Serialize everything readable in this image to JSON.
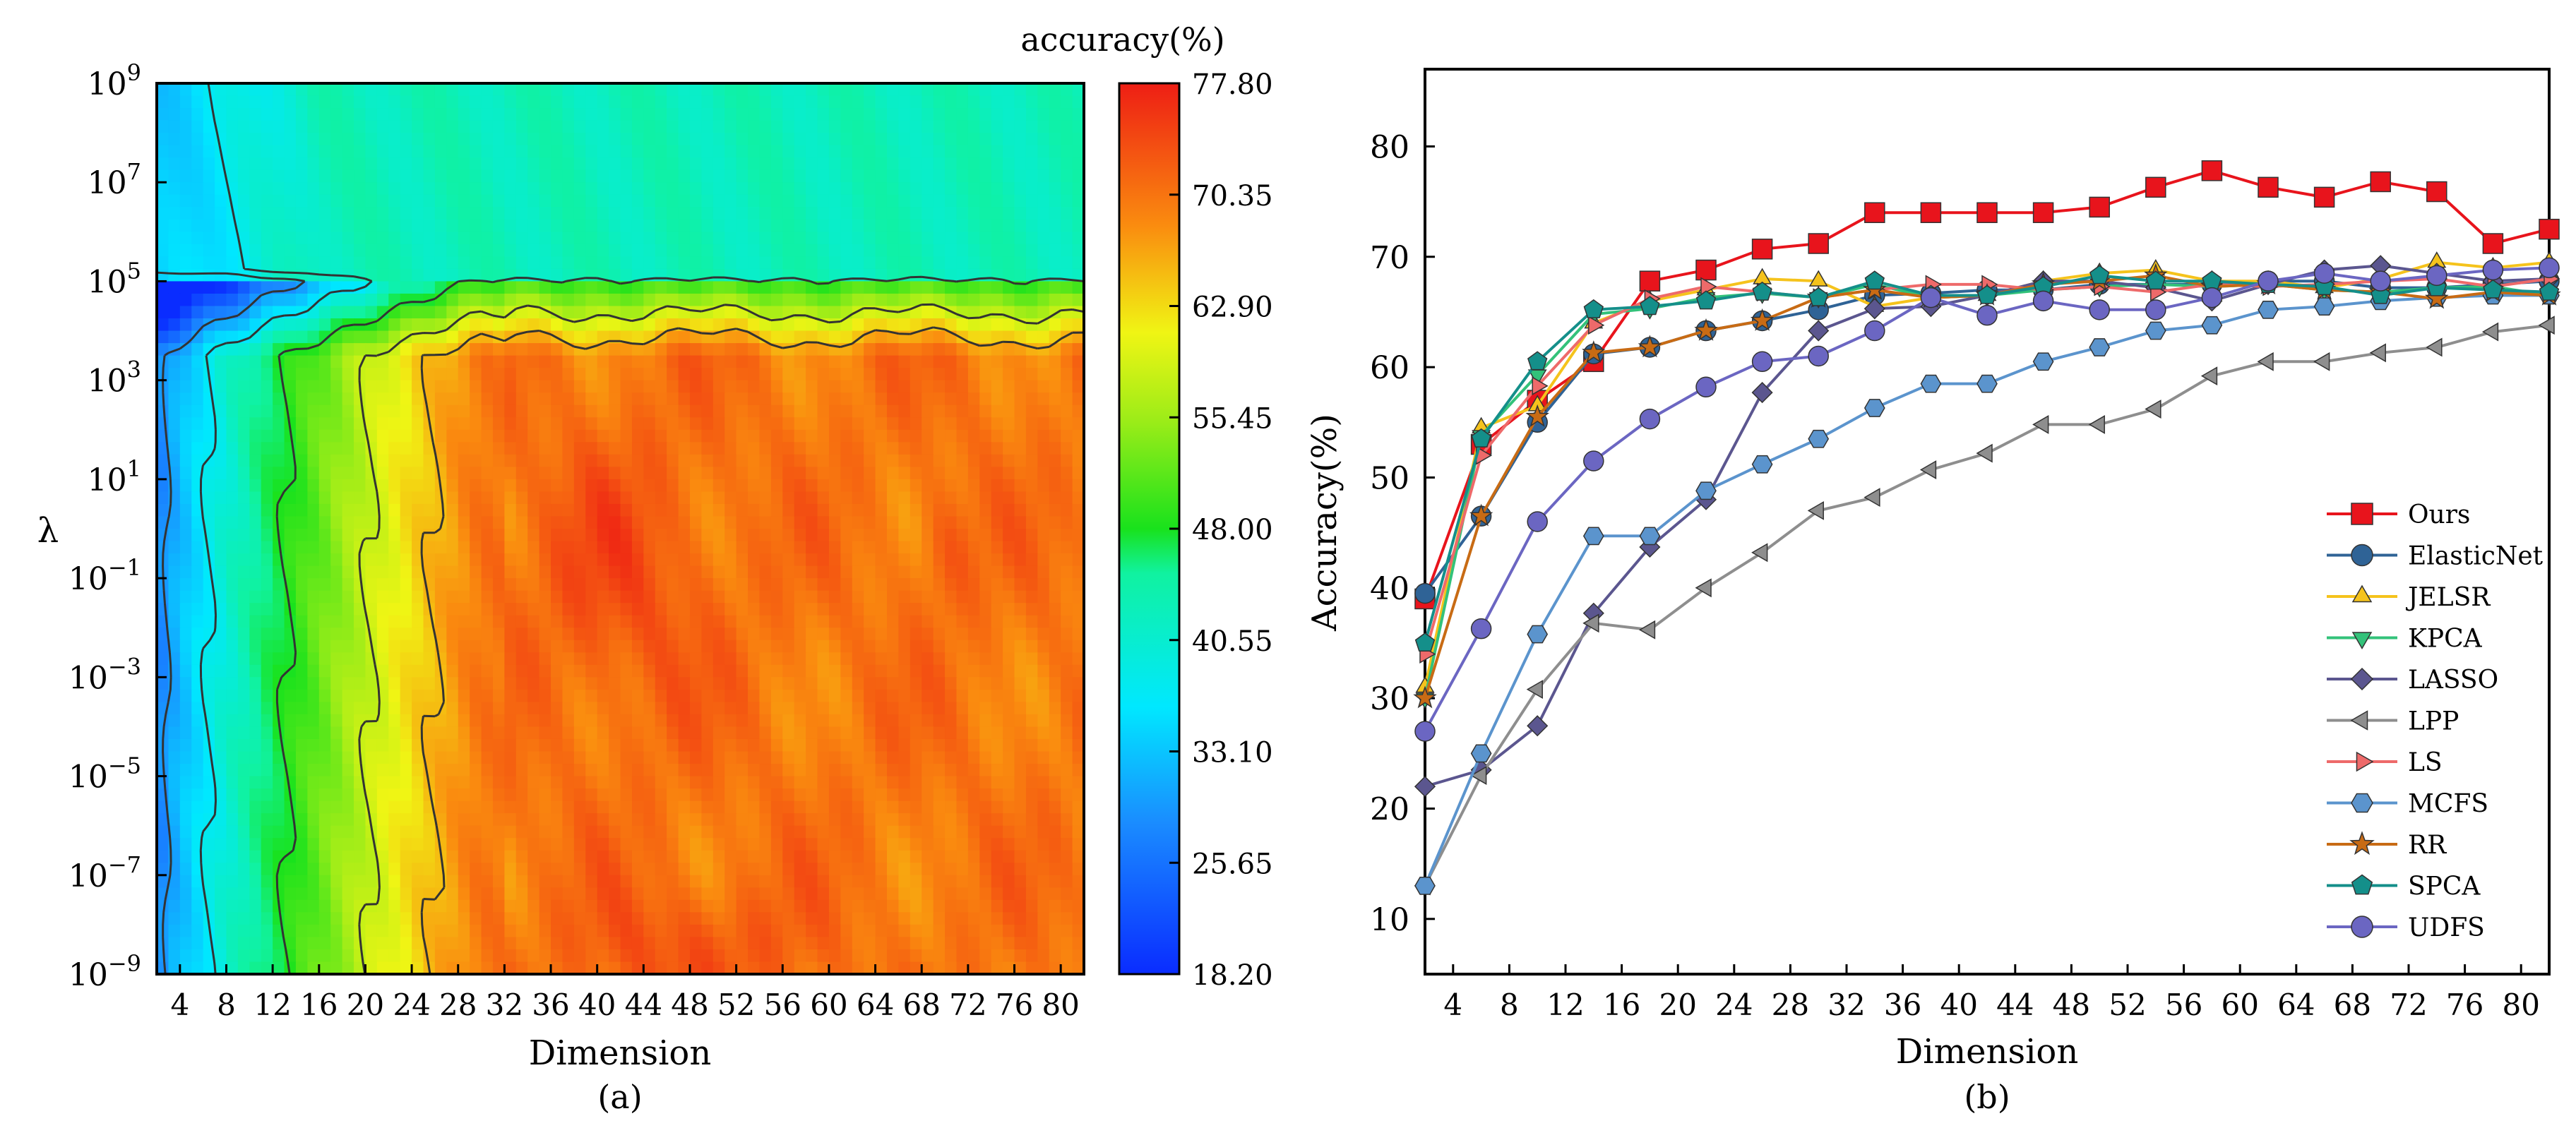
{
  "chart_data": [
    {
      "type": "heatmap",
      "panel_label": "(a)",
      "xlabel": "Dimension",
      "ylabel": "λ",
      "colorbar_title": "accuracy(%)",
      "colorbar_ticks": [
        "77.80",
        "70.35",
        "62.90",
        "55.45",
        "48.00",
        "40.55",
        "33.10",
        "25.65",
        "18.20"
      ],
      "color_range": [
        18.2,
        77.8
      ],
      "x_range": [
        2,
        82
      ],
      "x_tick_values": [
        4,
        8,
        12,
        16,
        20,
        24,
        28,
        32,
        36,
        40,
        44,
        48,
        52,
        56,
        60,
        64,
        68,
        72,
        76,
        80
      ],
      "x_tick_labels": [
        "4",
        "8",
        "12",
        "16",
        "20",
        "24",
        "28",
        "32",
        "36",
        "40",
        "44",
        "48",
        "52",
        "56",
        "60",
        "64",
        "68",
        "72",
        "76",
        "80"
      ],
      "y_range_exp": [
        -9,
        9
      ],
      "y_tick_exponents": [
        9,
        7,
        5,
        3,
        1,
        -1,
        -3,
        -5,
        -7,
        -9
      ],
      "y_tick_base": "10",
      "y_tick_exp_labels": [
        "9",
        "7",
        "5",
        "3",
        "1",
        "−1",
        "−3",
        "−5",
        "−7",
        "−9"
      ],
      "contour_levels": [
        29,
        37,
        48,
        58,
        65
      ],
      "colors": {
        "blue": "#0a2cff",
        "cyan": "#00e8ff",
        "green": "#19e21c",
        "yellow": "#f0f514",
        "orange": "#fa8c0f",
        "red": "#ee1e14"
      }
    },
    {
      "type": "line",
      "panel_label": "(b)",
      "xlabel": "Dimension",
      "ylabel": "Accuracy(%)",
      "x_range": [
        2,
        82
      ],
      "ylim": [
        5,
        87
      ],
      "x_tick_labels": [
        "4",
        "8",
        "12",
        "16",
        "20",
        "24",
        "28",
        "32",
        "36",
        "40",
        "44",
        "48",
        "52",
        "56",
        "60",
        "64",
        "68",
        "72",
        "76",
        "80"
      ],
      "y_tick_labels": [
        "10",
        "20",
        "30",
        "40",
        "50",
        "60",
        "70",
        "80"
      ],
      "legend_position": "lower-right",
      "x": [
        2,
        6,
        10,
        14,
        18,
        22,
        26,
        30,
        34,
        38,
        42,
        46,
        50,
        54,
        58,
        62,
        66,
        70,
        74,
        78,
        82
      ],
      "series": [
        {
          "name": "Ours",
          "color": "#e8141c",
          "marker": "square",
          "values": [
            39,
            53,
            57,
            60.5,
            67.8,
            68.8,
            70.7,
            71.2,
            74,
            74,
            74,
            74,
            74.5,
            76.3,
            77.8,
            76.3,
            75.4,
            76.8,
            75.9,
            71.2,
            72.5
          ]
        },
        {
          "name": "ElasticNet",
          "color": "#2f6396",
          "marker": "circle",
          "values": [
            39.5,
            46.5,
            55,
            61.2,
            61.8,
            63.3,
            64.2,
            65.2,
            66.5,
            66.7,
            67,
            67,
            67.5,
            67.5,
            67.5,
            67.8,
            67.8,
            67.2,
            67.2,
            67.5,
            67.8
          ]
        },
        {
          "name": "JELSR",
          "color": "#f5c31c",
          "marker": "triangle-up",
          "values": [
            31,
            54.5,
            56.5,
            64,
            66,
            67,
            68,
            67.8,
            65.5,
            66.3,
            66.5,
            67.8,
            68.5,
            68.8,
            67.8,
            67.8,
            67.2,
            68,
            69.5,
            69,
            69.5
          ]
        },
        {
          "name": "KPCA",
          "color": "#33c27a",
          "marker": "triangle-down",
          "values": [
            30,
            53.8,
            59.3,
            64.8,
            65.3,
            66.3,
            66.7,
            66.3,
            67.5,
            66.3,
            66.5,
            67,
            67.3,
            67.5,
            67.3,
            67.5,
            67,
            66.8,
            67.2,
            67.3,
            66.5
          ]
        },
        {
          "name": "LASSO",
          "color": "#5b568f",
          "marker": "diamond",
          "values": [
            22,
            23.5,
            27.5,
            37.7,
            43.7,
            48,
            57.7,
            63.3,
            65.3,
            65.5,
            66.5,
            67.8,
            67.8,
            67.2,
            66,
            67.5,
            68.8,
            69.2,
            68.5,
            67.8,
            68
          ]
        },
        {
          "name": "LPP",
          "color": "#8e8e8e",
          "marker": "triangle-left",
          "values": [
            13,
            23,
            30.8,
            36.8,
            36.2,
            40,
            43.2,
            47,
            48.2,
            50.7,
            52.2,
            54.8,
            54.8,
            56.2,
            59.2,
            60.5,
            60.5,
            61.3,
            61.8,
            63.2,
            63.8
          ]
        },
        {
          "name": "LS",
          "color": "#ee6a6a",
          "marker": "triangle-right",
          "values": [
            34,
            52,
            58.3,
            63.8,
            66.2,
            67.3,
            66.8,
            66.3,
            67,
            67.5,
            67.5,
            67,
            67.3,
            66.8,
            67.5,
            67.3,
            67.5,
            67.8,
            68,
            67.3,
            68
          ]
        },
        {
          "name": "MCFS",
          "color": "#5b94cd",
          "marker": "hexagon",
          "values": [
            13,
            25,
            35.8,
            44.7,
            44.7,
            48.8,
            51.2,
            53.5,
            56.3,
            58.5,
            58.5,
            60.5,
            61.8,
            63.3,
            63.8,
            65.2,
            65.5,
            66,
            66.3,
            66.5,
            66.5
          ]
        },
        {
          "name": "RR",
          "color": "#c86b14",
          "marker": "star",
          "values": [
            30,
            46.5,
            55.5,
            61.3,
            61.8,
            63.3,
            64.2,
            66.3,
            67,
            66.3,
            66.5,
            67.5,
            67.8,
            68.3,
            67.3,
            67.5,
            67,
            66.8,
            66.2,
            66.8,
            66.5
          ]
        },
        {
          "name": "SPCA",
          "color": "#148f8a",
          "marker": "pentagon",
          "values": [
            35,
            53.5,
            60.5,
            65.2,
            65.5,
            66,
            66.8,
            66.3,
            67.8,
            66.5,
            66.5,
            67.3,
            68.3,
            67.8,
            67.8,
            67.5,
            67.3,
            66.5,
            67.2,
            67,
            66.8
          ]
        },
        {
          "name": "UDFS",
          "color": "#6b66c2",
          "marker": "sphere",
          "values": [
            27,
            36.3,
            46,
            51.5,
            55.3,
            58.2,
            60.5,
            61,
            63.3,
            66.3,
            64.7,
            66,
            65.2,
            65.2,
            66.3,
            67.8,
            68.5,
            67.8,
            68.3,
            68.8,
            69
          ]
        }
      ]
    }
  ]
}
